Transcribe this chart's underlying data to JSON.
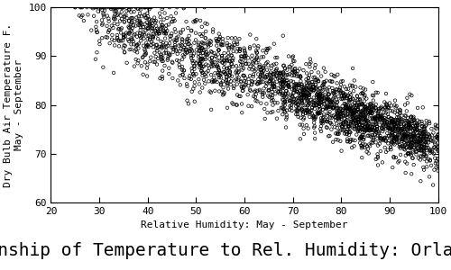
{
  "title": "Relationship of Temperature to Rel. Humidity: Orlando, FL",
  "xlabel": "Relative Humidity: May - September",
  "ylabel": "Dry Bulb Air Temperature F.\nMay - September",
  "xlim": [
    20,
    100
  ],
  "ylim": [
    60,
    100
  ],
  "xticks": [
    20,
    30,
    40,
    50,
    60,
    70,
    80,
    90,
    100
  ],
  "yticks": [
    60,
    70,
    80,
    90,
    100
  ],
  "marker": "o",
  "marker_size": 2.5,
  "marker_facecolor": "none",
  "marker_edgecolor": "#000000",
  "marker_linewidth": 0.5,
  "background_color": "#ffffff",
  "seed": 42,
  "n_points": 2500,
  "title_fontsize": 14,
  "label_fontsize": 8,
  "tick_fontsize": 8
}
